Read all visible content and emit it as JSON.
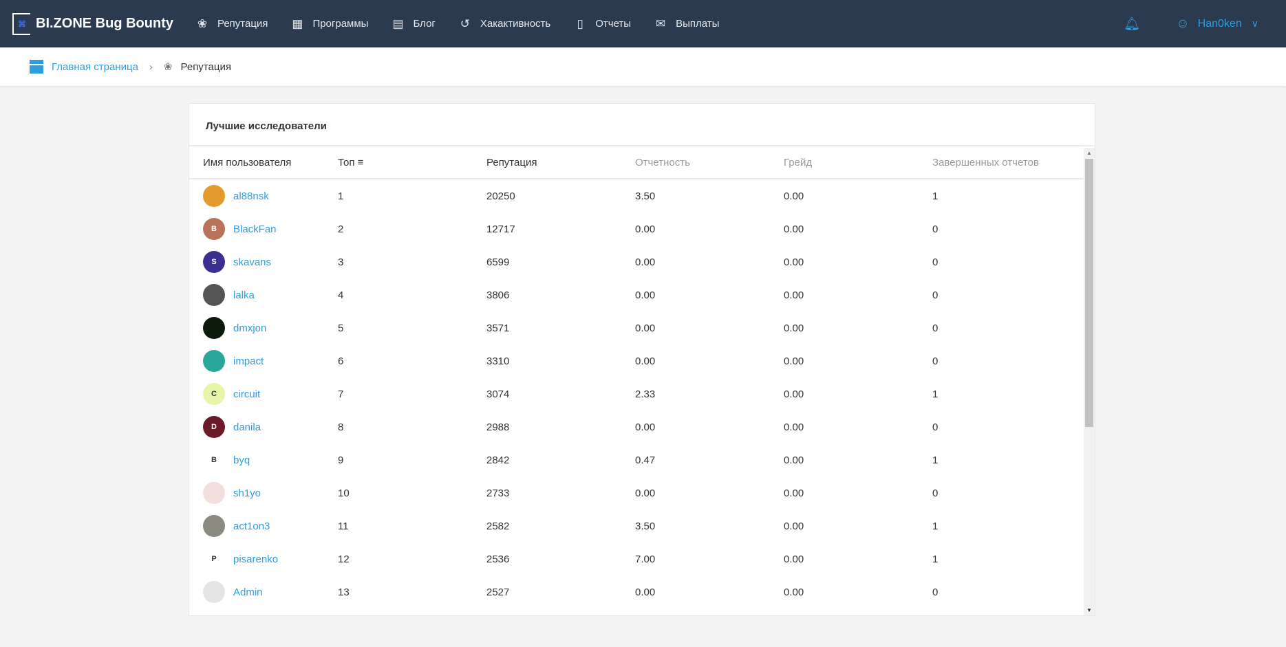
{
  "header": {
    "logo": "BI.ZONE Bug Bounty",
    "nav": [
      {
        "label": "Репутация",
        "icon": "ribbon-icon"
      },
      {
        "label": "Программы",
        "icon": "building-icon"
      },
      {
        "label": "Блог",
        "icon": "blog-icon"
      },
      {
        "label": "Хакактивность",
        "icon": "history-icon"
      },
      {
        "label": "Отчеты",
        "icon": "report-icon"
      },
      {
        "label": "Выплаты",
        "icon": "payout-icon"
      }
    ],
    "user": "Han0ken"
  },
  "breadcrumb": {
    "home": "Главная страница",
    "current": "Репутация"
  },
  "card": {
    "title": "Лучшие исследователи"
  },
  "table": {
    "headers": [
      "Имя пользователя",
      "Топ",
      "Репутация",
      "Отчетность",
      "Грейд",
      "Завершенных отчетов"
    ],
    "rows": [
      {
        "user": "al88nsk",
        "top": "1",
        "rep": "20250",
        "rate": "3.50",
        "grade": "0.00",
        "done": "1",
        "av": "",
        "color": "#e39a2f"
      },
      {
        "user": "BlackFan",
        "top": "2",
        "rep": "12717",
        "rate": "0.00",
        "grade": "0.00",
        "done": "0",
        "av": "B",
        "color": "#b8735a"
      },
      {
        "user": "skavans",
        "top": "3",
        "rep": "6599",
        "rate": "0.00",
        "grade": "0.00",
        "done": "0",
        "av": "S",
        "color": "#3b2f8f"
      },
      {
        "user": "lalka",
        "top": "4",
        "rep": "3806",
        "rate": "0.00",
        "grade": "0.00",
        "done": "0",
        "av": "",
        "color": "#555"
      },
      {
        "user": "dmxjon",
        "top": "5",
        "rep": "3571",
        "rate": "0.00",
        "grade": "0.00",
        "done": "0",
        "av": "",
        "color": "#0b1a0b"
      },
      {
        "user": "impact",
        "top": "6",
        "rep": "3310",
        "rate": "0.00",
        "grade": "0.00",
        "done": "0",
        "av": "",
        "color": "#2aa79b"
      },
      {
        "user": "circuit",
        "top": "7",
        "rep": "3074",
        "rate": "2.33",
        "grade": "0.00",
        "done": "1",
        "av": "C",
        "color": "#e6f5a8"
      },
      {
        "user": "danila",
        "top": "8",
        "rep": "2988",
        "rate": "0.00",
        "grade": "0.00",
        "done": "0",
        "av": "D",
        "color": "#6b1a2a"
      },
      {
        "user": "byq",
        "top": "9",
        "rep": "2842",
        "rate": "0.47",
        "grade": "0.00",
        "done": "1",
        "av": "B",
        "color": "#ffffff"
      },
      {
        "user": "sh1yo",
        "top": "10",
        "rep": "2733",
        "rate": "0.00",
        "grade": "0.00",
        "done": "0",
        "av": "",
        "color": "#f3dede"
      },
      {
        "user": "act1on3",
        "top": "11",
        "rep": "2582",
        "rate": "3.50",
        "grade": "0.00",
        "done": "1",
        "av": "",
        "color": "#8a8a80"
      },
      {
        "user": "pisarenko",
        "top": "12",
        "rep": "2536",
        "rate": "7.00",
        "grade": "0.00",
        "done": "1",
        "av": "P",
        "color": "#ffffff"
      },
      {
        "user": "Admin",
        "top": "13",
        "rep": "2527",
        "rate": "0.00",
        "grade": "0.00",
        "done": "0",
        "av": "",
        "color": "#e4e4e4"
      }
    ]
  }
}
